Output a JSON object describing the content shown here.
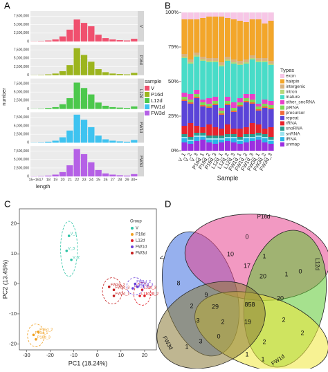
{
  "chart_data": [
    {
      "panel_label": "A",
      "type": "facet-bar",
      "xlabel": "length",
      "ylabel": "number",
      "legend_title": "sample",
      "grid": true,
      "categories": [
        "15~16",
        "17",
        "18",
        "19",
        "20",
        "21",
        "22",
        "23",
        "24",
        "25",
        "26",
        "27",
        "28",
        "29",
        "30+"
      ],
      "ylim": [
        0,
        9000000
      ],
      "yticks": [
        0,
        {
          "value": 2500000,
          "label": "2,500,000"
        },
        {
          "value": 5000000,
          "label": "5,000,000"
        },
        {
          "value": 7500000,
          "label": "7,500,000"
        }
      ],
      "series": [
        {
          "name": "V",
          "color": "#f0506e",
          "values": [
            50000,
            100000,
            300000,
            600000,
            1500000,
            3500000,
            6500000,
            5500000,
            4500000,
            2000000,
            1000000,
            600000,
            400000,
            300000,
            800000
          ]
        },
        {
          "name": "P16d",
          "color": "#9cb51e",
          "values": [
            50000,
            100000,
            250000,
            500000,
            1200000,
            3000000,
            8000000,
            6000000,
            4000000,
            1800000,
            900000,
            500000,
            350000,
            250000,
            700000
          ]
        },
        {
          "name": "L12d",
          "color": "#4cc84c",
          "values": [
            50000,
            100000,
            300000,
            550000,
            1400000,
            3200000,
            7800000,
            6200000,
            4300000,
            1900000,
            950000,
            550000,
            400000,
            300000,
            750000
          ]
        },
        {
          "name": "FW1d",
          "color": "#3ec3f0",
          "values": [
            50000,
            100000,
            300000,
            600000,
            1600000,
            3600000,
            8300000,
            6800000,
            4600000,
            2100000,
            1000000,
            600000,
            400000,
            300000,
            800000
          ]
        },
        {
          "name": "FW3d",
          "color": "#b560e6",
          "values": [
            50000,
            100000,
            250000,
            550000,
            1300000,
            3300000,
            8100000,
            6600000,
            4200000,
            1900000,
            900000,
            550000,
            350000,
            250000,
            700000
          ]
        }
      ]
    },
    {
      "panel_label": "B",
      "type": "stacked-bar",
      "xlabel": "Sample",
      "legend_title": "Types",
      "categories": [
        "V_1",
        "V_2",
        "V_3",
        "P16d_1",
        "P16d_2",
        "P16d_3",
        "L12d_1",
        "L12d_2",
        "L12d_3",
        "FW1d_1",
        "FW1d_2",
        "FW1d_3",
        "FW3d_1",
        "FW3d_2",
        "FW3d_3"
      ],
      "ylim": [
        0,
        100
      ],
      "yticks": [
        {
          "value": 0,
          "label": "0%"
        },
        {
          "value": 25,
          "label": "25%"
        },
        {
          "value": 50,
          "label": "50%"
        },
        {
          "value": 75,
          "label": "75%"
        },
        {
          "value": 100,
          "label": "100%"
        }
      ],
      "series": [
        {
          "name": "exon",
          "color": "#f7c6e6",
          "values": [
            5,
            5,
            5,
            4,
            3,
            3,
            3,
            4,
            5,
            6,
            7,
            5,
            5,
            8,
            6
          ]
        },
        {
          "name": "hairpin",
          "color": "#f3a62a",
          "values": [
            25,
            29,
            24,
            28,
            30,
            30,
            33,
            28,
            29,
            29,
            27,
            26,
            28,
            25,
            29
          ]
        },
        {
          "name": "intergenic",
          "color": "#d8b27e",
          "values": [
            2,
            2,
            2,
            2,
            2,
            2,
            2,
            2,
            2,
            2,
            2,
            2,
            2,
            2,
            2
          ]
        },
        {
          "name": "intron",
          "color": "#b6d77a",
          "values": [
            1,
            1,
            1,
            1,
            1,
            1,
            1,
            1,
            1,
            1,
            1,
            1,
            1,
            1,
            1
          ]
        },
        {
          "name": "mature",
          "color": "#48dcc8",
          "values": [
            25,
            22,
            24,
            28,
            26,
            25,
            30,
            26,
            28,
            24,
            22,
            25,
            30,
            27,
            26
          ]
        },
        {
          "name": "other_sncRNA",
          "color": "#e840c8",
          "values": [
            3,
            4,
            3,
            2,
            4,
            3,
            2,
            3,
            4,
            3,
            3,
            4,
            2,
            3,
            3
          ]
        },
        {
          "name": "piRNA",
          "color": "#7ed957",
          "values": [
            2,
            2,
            2,
            2,
            2,
            2,
            2,
            2,
            2,
            2,
            2,
            2,
            2,
            2,
            2
          ]
        },
        {
          "name": "precursor",
          "color": "#f06a3a",
          "values": [
            1,
            1,
            1,
            1,
            1,
            1,
            1,
            1,
            1,
            1,
            1,
            1,
            1,
            1,
            1
          ]
        },
        {
          "name": "repeat",
          "color": "#5a44d8",
          "values": [
            18,
            14,
            20,
            15,
            12,
            16,
            10,
            14,
            12,
            16,
            18,
            14,
            10,
            15,
            13
          ]
        },
        {
          "name": "rRNA",
          "color": "#e8232c",
          "values": [
            6,
            10,
            5,
            4,
            8,
            6,
            5,
            7,
            4,
            6,
            5,
            8,
            6,
            4,
            7
          ]
        },
        {
          "name": "snoRNA",
          "color": "#2a9d8f",
          "values": [
            2,
            2,
            2,
            2,
            2,
            2,
            2,
            2,
            2,
            2,
            2,
            2,
            2,
            2,
            2
          ]
        },
        {
          "name": "snRNA",
          "color": "#9be3f0",
          "values": [
            1,
            1,
            1,
            1,
            1,
            1,
            1,
            1,
            1,
            1,
            1,
            1,
            1,
            1,
            1
          ]
        },
        {
          "name": "tRNA",
          "color": "#2bb5e8",
          "values": [
            3,
            2,
            3,
            2,
            2,
            3,
            2,
            2,
            3,
            2,
            3,
            2,
            2,
            3,
            2
          ]
        },
        {
          "name": "unmap",
          "color": "#9b2fe0",
          "values": [
            6,
            5,
            7,
            8,
            6,
            5,
            6,
            7,
            6,
            5,
            6,
            7,
            8,
            6,
            5
          ]
        }
      ]
    },
    {
      "panel_label": "C",
      "type": "scatter",
      "xlabel": "PC1 (18.24%)",
      "ylabel": "PC2 (13.45%)",
      "legend_title": "Group",
      "xlim": [
        -33,
        25
      ],
      "ylim": [
        -22,
        25
      ],
      "xticks": [
        -30,
        -20,
        -10,
        0,
        10,
        20
      ],
      "yticks": [
        -20,
        -10,
        0,
        10,
        20
      ],
      "series": [
        {
          "name": "V",
          "color": "#2ec4a6",
          "labels": [
            "V_1",
            "V_2",
            "V_3"
          ],
          "x": [
            -12,
            -11,
            -13
          ],
          "values": [
            16,
            8,
            11
          ]
        },
        {
          "name": "P16d",
          "color": "#f0a020",
          "labels": [
            "P16d_1",
            "P16d_2",
            "P16d_3"
          ],
          "x": [
            -27,
            -25,
            -26
          ],
          "values": [
            -17,
            -16,
            -18.5
          ]
        },
        {
          "name": "L12d",
          "color": "#e0202a",
          "labels": [
            "L12d_1",
            "L12d_2",
            "L12d_3"
          ],
          "x": [
            18,
            20,
            19
          ],
          "values": [
            -4,
            -4,
            -2
          ]
        },
        {
          "name": "FW1d",
          "color": "#6a3fd8",
          "labels": [
            "FW1d_1",
            "FW1d_2",
            "FW1d_3"
          ],
          "x": [
            15,
            16,
            17
          ],
          "values": [
            -1.5,
            0,
            -1
          ]
        },
        {
          "name": "FW3d",
          "color": "#c41e1e",
          "labels": [
            "FW3d_1",
            "FW3d_2",
            "FW3d_3"
          ],
          "x": [
            7,
            5,
            7
          ],
          "values": [
            -4,
            -1,
            -2
          ]
        }
      ]
    },
    {
      "panel_label": "D",
      "type": "venn",
      "sets": [
        "V",
        "P16d",
        "L12d",
        "FW1d",
        "FW3d"
      ],
      "counts": [
        8,
        0,
        0,
        1,
        1,
        10,
        17,
        1,
        20,
        1,
        2,
        9,
        29,
        858,
        20,
        2,
        3,
        3,
        0,
        19,
        2,
        2,
        1,
        2
      ]
    }
  ]
}
